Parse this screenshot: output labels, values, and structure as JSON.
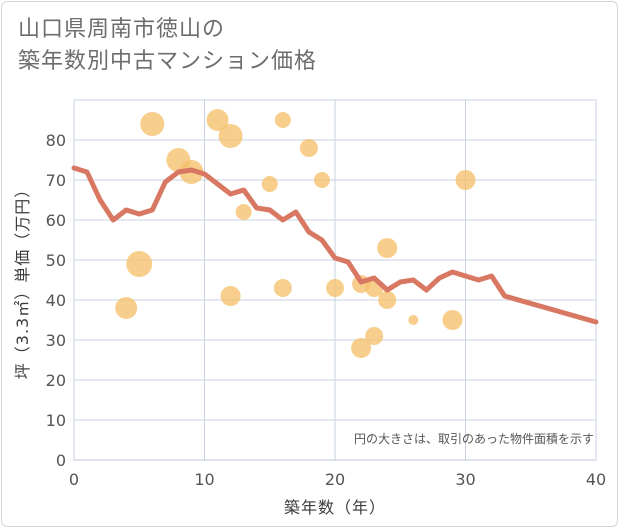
{
  "title_line1": "山口県周南市徳山の",
  "title_line2": "築年数別中古マンション価格",
  "chart_data": {
    "type": "scatter",
    "xlabel": "築年数（年）",
    "ylabel": "坪（3.3㎡）単価（万円）",
    "xlim": [
      0,
      40
    ],
    "ylim": [
      0,
      90
    ],
    "xticks": [
      0,
      10,
      20,
      30,
      40
    ],
    "yticks": [
      0,
      10,
      20,
      30,
      40,
      50,
      60,
      70,
      80
    ],
    "grid": true,
    "note": "円の大きさは、取引のあった物件面積を示す",
    "bubble_color": "#f5c06b",
    "line_color": "#d87762",
    "points": [
      {
        "x": 4,
        "y": 38,
        "size": 11
      },
      {
        "x": 5,
        "y": 49,
        "size": 13
      },
      {
        "x": 6,
        "y": 84,
        "size": 12
      },
      {
        "x": 8,
        "y": 75,
        "size": 12
      },
      {
        "x": 9,
        "y": 72,
        "size": 12
      },
      {
        "x": 11,
        "y": 85,
        "size": 11
      },
      {
        "x": 12,
        "y": 81,
        "size": 12
      },
      {
        "x": 12,
        "y": 41,
        "size": 10
      },
      {
        "x": 13,
        "y": 62,
        "size": 8
      },
      {
        "x": 15,
        "y": 69,
        "size": 8
      },
      {
        "x": 16,
        "y": 85,
        "size": 8
      },
      {
        "x": 16,
        "y": 43,
        "size": 9
      },
      {
        "x": 18,
        "y": 78,
        "size": 9
      },
      {
        "x": 19,
        "y": 70,
        "size": 8
      },
      {
        "x": 20,
        "y": 43,
        "size": 9
      },
      {
        "x": 22,
        "y": 44,
        "size": 9
      },
      {
        "x": 22,
        "y": 28,
        "size": 10
      },
      {
        "x": 23,
        "y": 43,
        "size": 9
      },
      {
        "x": 23,
        "y": 31,
        "size": 9
      },
      {
        "x": 24,
        "y": 53,
        "size": 10
      },
      {
        "x": 24,
        "y": 40,
        "size": 9
      },
      {
        "x": 26,
        "y": 35,
        "size": 5
      },
      {
        "x": 29,
        "y": 35,
        "size": 10
      },
      {
        "x": 30,
        "y": 70,
        "size": 10
      }
    ],
    "trend": {
      "x": [
        0,
        1,
        2,
        3,
        4,
        5,
        6,
        7,
        8,
        9,
        10,
        11,
        12,
        13,
        14,
        15,
        16,
        17,
        18,
        19,
        20,
        21,
        22,
        23,
        24,
        25,
        26,
        27,
        28,
        29,
        30,
        31,
        32,
        33,
        40
      ],
      "y": [
        73,
        72,
        65,
        60,
        62.5,
        61.5,
        62.5,
        69.5,
        72,
        72.5,
        71.5,
        69,
        66.5,
        67.5,
        63,
        62.5,
        60,
        62,
        57,
        55,
        50.5,
        49.5,
        44.5,
        45.5,
        42.5,
        44.5,
        45,
        42.5,
        45.5,
        47,
        46,
        45,
        46,
        41,
        34.5
      ]
    }
  }
}
